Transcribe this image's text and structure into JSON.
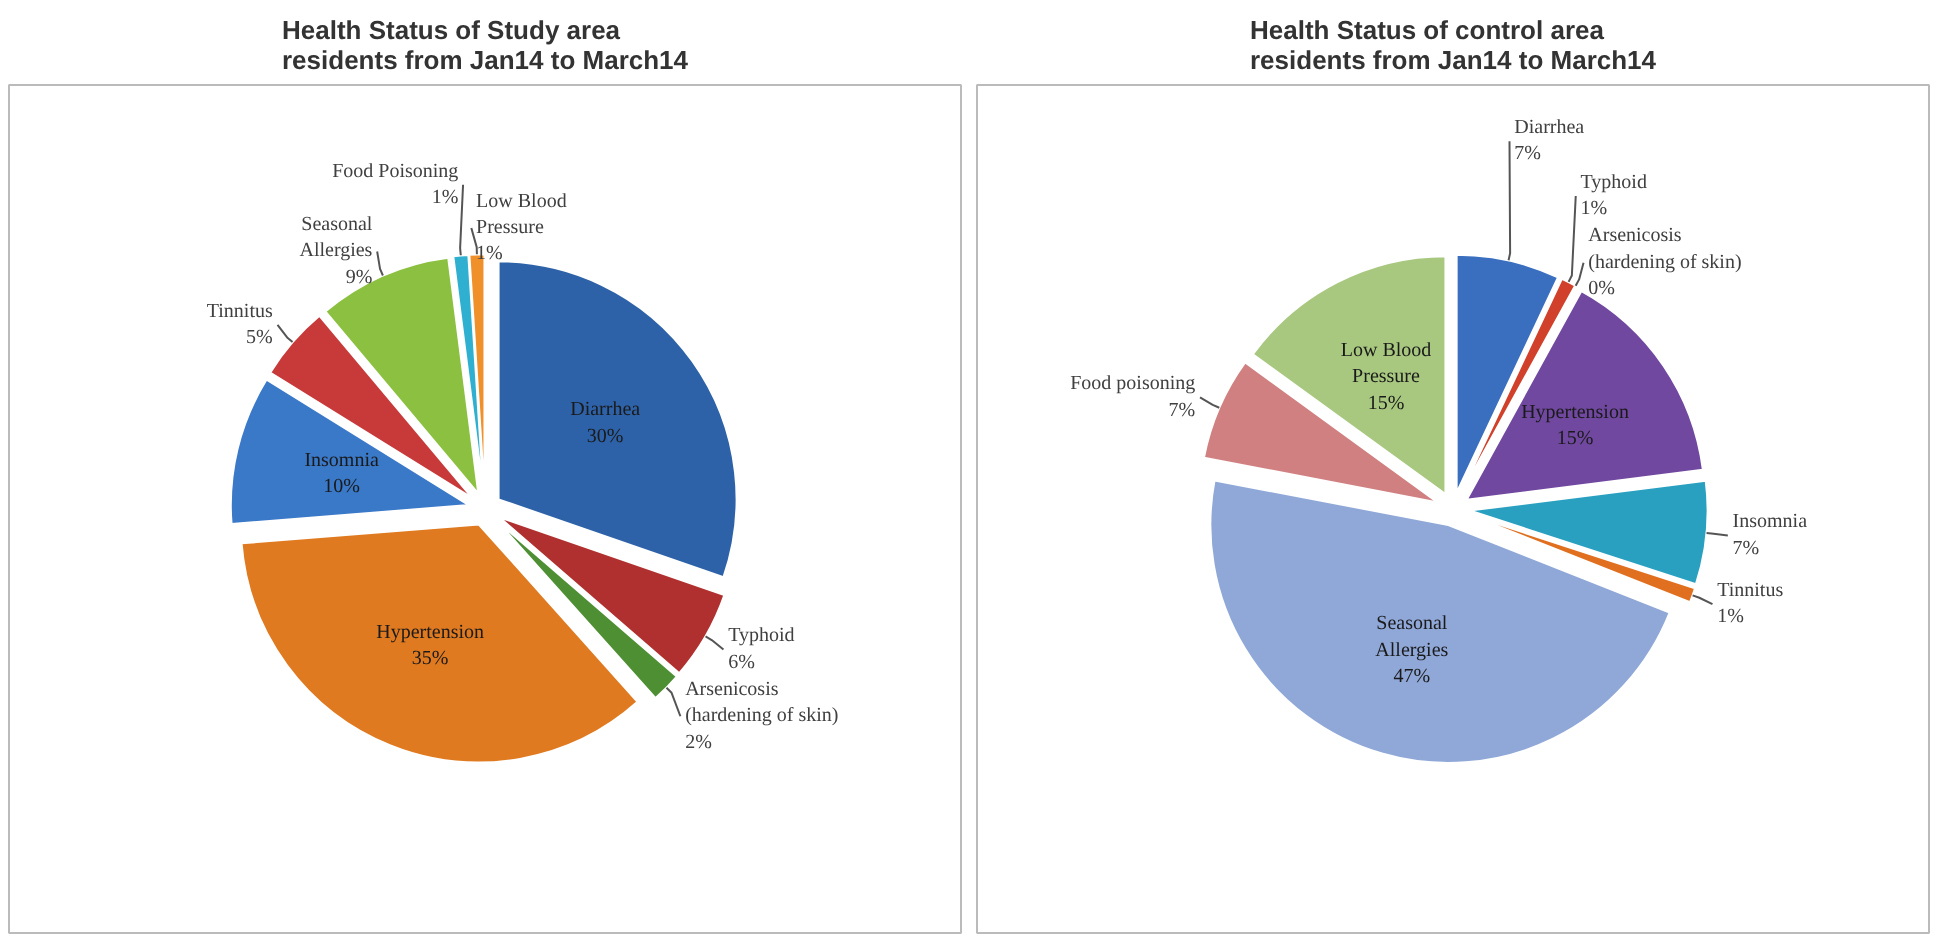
{
  "chart_data": [
    {
      "type": "pie",
      "title": "Health Status of Study area residents from Jan14 to March14",
      "categories": [
        "Diarrhea",
        "Typhoid",
        "Arsenicosis (hardening of skin)",
        "Hypertension",
        "Insomnia",
        "Tinnitus",
        "Seasonal Allergies",
        "Food Poisoning",
        "Low Blood Pressure"
      ],
      "values": [
        30,
        6,
        2,
        35,
        10,
        5,
        9,
        1,
        1
      ],
      "colors": [
        "#2e62a8",
        "#b03030",
        "#4f8f34",
        "#e07a20",
        "#3a78c8",
        "#c83a3a",
        "#8cc040",
        "#30b0d0",
        "#f0902a"
      ],
      "value_labels": [
        "30%",
        "6%",
        "2%",
        "35%",
        "10%",
        "5%",
        "9%",
        "1%",
        "1%"
      ]
    },
    {
      "type": "pie",
      "title": "Health Status of control area residents from Jan14 to March14",
      "categories": [
        "Diarrhea",
        "Typhoid",
        "Arsenicosis (hardening of skin)",
        "Hypertension",
        "Insomnia",
        "Tinnitus",
        "Seasonal Allergies",
        "Food poisoning",
        "Low Blood Pressure"
      ],
      "values": [
        7,
        1,
        0,
        15,
        7,
        1,
        47,
        7,
        15
      ],
      "colors": [
        "#3a6fc0",
        "#d0402a",
        "#90b040",
        "#7048a0",
        "#2aa0c0",
        "#e07020",
        "#90a8d8",
        "#d08080",
        "#a8c880"
      ],
      "value_labels": [
        "7%",
        "1%",
        "0%",
        "15%",
        "7%",
        "1%",
        "47%",
        "7%",
        "15%"
      ]
    }
  ]
}
